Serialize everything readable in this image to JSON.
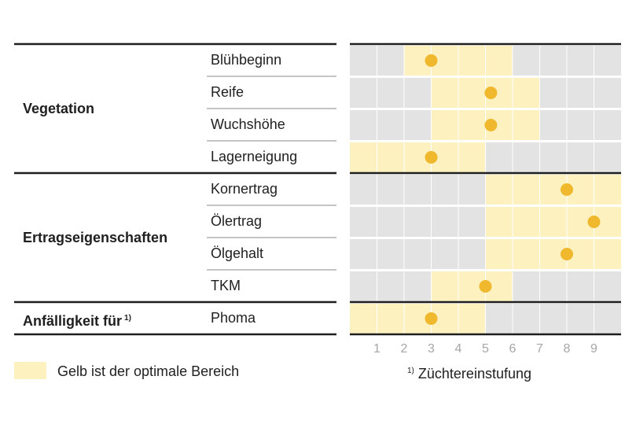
{
  "chart_data": {
    "type": "table",
    "title": "",
    "scale": {
      "min": 1,
      "max": 9,
      "ticks": [
        "1",
        "2",
        "3",
        "4",
        "5",
        "6",
        "7",
        "8",
        "9"
      ]
    },
    "groups": [
      {
        "name": "Vegetation",
        "footnote_mark": "",
        "rows": [
          {
            "label": "Blühbeginn",
            "optimal_range": [
              2,
              6
            ],
            "value": 3
          },
          {
            "label": "Reife",
            "optimal_range": [
              3,
              7
            ],
            "value": 5.2
          },
          {
            "label": "Wuchshöhe",
            "optimal_range": [
              3,
              7
            ],
            "value": 5.2
          },
          {
            "label": "Lagerneigung",
            "optimal_range": [
              0,
              5
            ],
            "value": 3
          }
        ]
      },
      {
        "name": "Ertragseigenschaften",
        "footnote_mark": "",
        "rows": [
          {
            "label": "Kornertrag",
            "optimal_range": [
              5,
              10
            ],
            "value": 8
          },
          {
            "label": "Ölertrag",
            "optimal_range": [
              5,
              10
            ],
            "value": 9
          },
          {
            "label": "Ölgehalt",
            "optimal_range": [
              5,
              10
            ],
            "value": 8
          },
          {
            "label": "TKM",
            "optimal_range": [
              3,
              6
            ],
            "value": 5
          }
        ]
      },
      {
        "name": "Anfälligkeit für",
        "footnote_mark": "1)",
        "rows": [
          {
            "label": "Phoma",
            "optimal_range": [
              0,
              5
            ],
            "value": 3
          }
        ]
      }
    ]
  },
  "legend": {
    "text": "Gelb ist der optimale Bereich"
  },
  "footnote": {
    "mark": "1)",
    "text": "Züchtereinstufung"
  },
  "colors": {
    "optimal": "#fdf1c0",
    "background": "#e3e3e3",
    "marker": "#f0b82d",
    "gridline": "#ffffff",
    "rule": "#1f1f1f"
  }
}
